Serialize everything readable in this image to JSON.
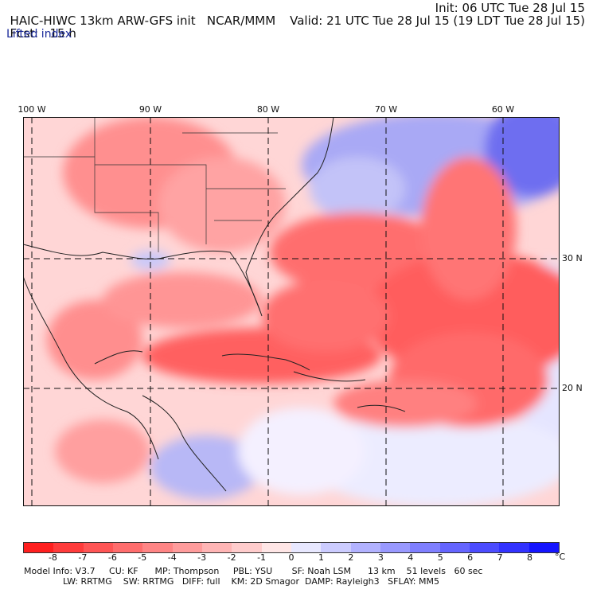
{
  "header": {
    "model": "HAIC-HIWC 13km ARW-GFS init",
    "org": "NCAR/MMM",
    "init": "Init: 06 UTC Tue 28 Jul 15",
    "fcst_label": "Fcst:",
    "fcst_value": "15 h",
    "valid": "Valid: 21 UTC Tue 28 Jul 15 (19 LDT Tue 28 Jul 15)",
    "field": "Lifted index"
  },
  "map": {
    "lon_labels": [
      "100 W",
      "90 W",
      "80 W",
      "70 W",
      "60 W"
    ],
    "lat_labels": [
      "30 N",
      "20 N"
    ]
  },
  "colorbar": {
    "ticks": [
      "-8",
      "-7",
      "-6",
      "-5",
      "-4",
      "-3",
      "-2",
      "-1",
      "0",
      "1",
      "2",
      "3",
      "4",
      "5",
      "6",
      "7",
      "8"
    ],
    "unit": "°C",
    "colors": [
      "#ff1f1f",
      "#ff3b3b",
      "#ff5555",
      "#ff6d6d",
      "#ff8585",
      "#ff9c9c",
      "#ffb5b5",
      "#ffcccc",
      "#ffe6e6",
      "#e8e8ff",
      "#ccccff",
      "#b2b2ff",
      "#9999ff",
      "#7f7fff",
      "#6565ff",
      "#4c4cff",
      "#3232ff",
      "#1414ff"
    ]
  },
  "footer": {
    "line1": "Model Info: V3.7     CU: KF      MP: Thompson     PBL: YSU       SF: Noah LSM      13 km    51 levels   60 sec",
    "line2": "              LW: RRTMG    SW: RRTMG   DIFF: full    KM: 2D Smagor  DAMP: Rayleigh3   SFLAY: MM5"
  }
}
